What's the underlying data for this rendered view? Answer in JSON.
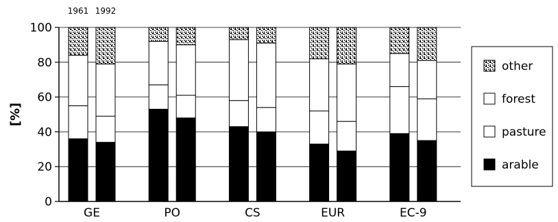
{
  "chart_data": {
    "type": "bar",
    "stacked": true,
    "title": "",
    "xlabel": "",
    "ylabel": "[%]",
    "ylim": [
      0,
      100
    ],
    "yticks": [
      "0",
      "20",
      "40",
      "60",
      "80",
      "100"
    ],
    "grid": true,
    "legend_position": "right",
    "categories": [
      "GE",
      "PO",
      "CS",
      "EUR",
      "EC-9"
    ],
    "years": [
      "1961",
      "1992"
    ],
    "series": [
      {
        "name": "arable",
        "pattern": "solid",
        "color": "#000000",
        "values_1961": [
          36,
          53,
          43,
          33,
          39
        ],
        "values_1992": [
          34,
          48,
          40,
          29,
          35
        ]
      },
      {
        "name": "pasture",
        "pattern": "blank",
        "color": "#ffffff",
        "values_1961": [
          19,
          14,
          15,
          19,
          27
        ],
        "values_1992": [
          15,
          13,
          14,
          17,
          24
        ]
      },
      {
        "name": "forest",
        "pattern": "blank",
        "color": "#ffffff",
        "values_1961": [
          29,
          25,
          35,
          30,
          19
        ],
        "values_1992": [
          30,
          29,
          37,
          33,
          22
        ]
      },
      {
        "name": "other",
        "pattern": "speckled",
        "color": "#888888",
        "values_1961": [
          16,
          8,
          7,
          18,
          15
        ],
        "values_1992": [
          21,
          10,
          9,
          21,
          19
        ]
      }
    ],
    "legend": [
      "other",
      "forest",
      "pasture",
      "arable"
    ]
  }
}
